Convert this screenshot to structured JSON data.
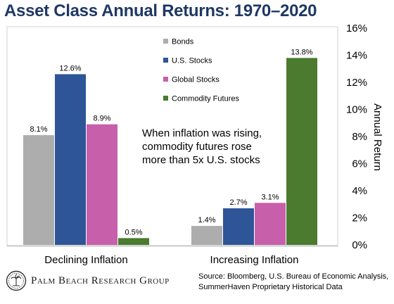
{
  "title": "Asset Class Annual Returns: 1970–2020",
  "chart_data": {
    "type": "bar",
    "categories": [
      "Declining Inflation",
      "Increasing Inflation"
    ],
    "series": [
      {
        "name": "Bonds",
        "color": "#adadad",
        "values": [
          8.1,
          1.4
        ],
        "labels": [
          "8.1%",
          "1.4%"
        ]
      },
      {
        "name": "U.S. Stocks",
        "color": "#2e5597",
        "values": [
          12.6,
          2.7
        ],
        "labels": [
          "12.6%",
          "2.7%"
        ]
      },
      {
        "name": "Global Stocks",
        "color": "#c75fab",
        "values": [
          8.9,
          3.1
        ],
        "labels": [
          "8.9%",
          "3.1%"
        ]
      },
      {
        "name": "Commodity Futures",
        "color": "#4a7b2f",
        "values": [
          0.5,
          13.8
        ],
        "labels": [
          "0.5%",
          "13.8%"
        ]
      }
    ],
    "ylabel": "Annual Return",
    "ylim": [
      0,
      16
    ],
    "yticks": [
      0,
      2,
      4,
      6,
      8,
      10,
      12,
      14,
      16
    ],
    "yticklabels": [
      "0%",
      "2%",
      "4%",
      "6%",
      "8%",
      "10%",
      "12%",
      "14%",
      "16%"
    ],
    "y_axis_side": "right",
    "grid": false,
    "legend_position": "top-center"
  },
  "annotation": {
    "lines": [
      "When inflation was rising,",
      "commodity futures rose",
      "more than 5x U.S. stocks"
    ]
  },
  "logo": {
    "text": "Palm Beach Research Group",
    "icon": "seal-icon"
  },
  "source": {
    "lines": [
      "Source: Bloomberg, U.S. Bureau of Economic Analysis,",
      "SummerHaven Proprietary Historical Data"
    ]
  }
}
